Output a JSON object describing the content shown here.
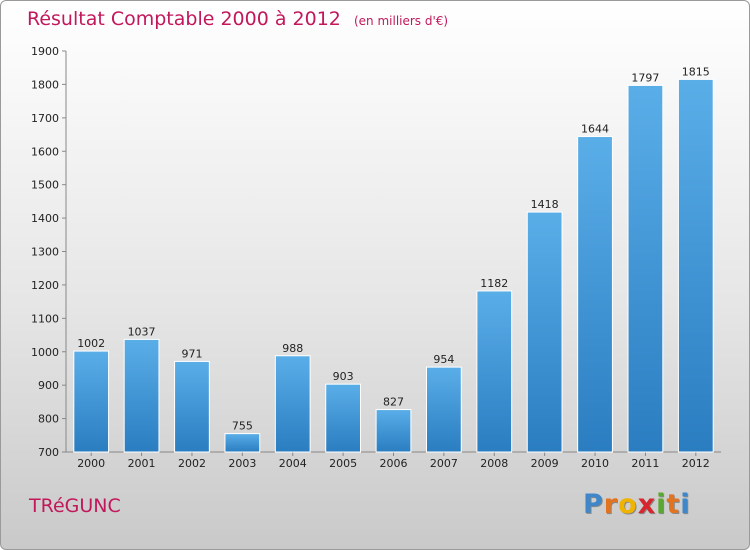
{
  "title": "Résultat Comptable 2000 à 2012",
  "unit": "(en milliers d'€)",
  "commune": "TRéGUNC",
  "logo": {
    "letters": [
      "P",
      "r",
      "o",
      "x",
      "i",
      "t",
      "i"
    ],
    "colors": [
      "#3f87c8",
      "#e2731f",
      "#f0b400",
      "#d7262d",
      "#5aa831",
      "#e2731f",
      "#3f87c8"
    ]
  },
  "colors": {
    "title": "#c2185b",
    "bar_top": "#5aaee8",
    "bar_bottom": "#2a7dc0"
  },
  "chart_data": {
    "type": "bar",
    "categories": [
      "2000",
      "2001",
      "2002",
      "2003",
      "2004",
      "2005",
      "2006",
      "2007",
      "2008",
      "2009",
      "2010",
      "2011",
      "2012"
    ],
    "values": [
      1002,
      1037,
      971,
      755,
      988,
      903,
      827,
      954,
      1182,
      1418,
      1644,
      1797,
      1815
    ],
    "title": "Résultat Comptable 2000 à 2012",
    "xlabel": "",
    "ylabel": "",
    "ylim": [
      700,
      1900
    ],
    "yticks": [
      700,
      800,
      900,
      1000,
      1100,
      1200,
      1300,
      1400,
      1500,
      1600,
      1700,
      1800,
      1900
    ],
    "grid": false,
    "legend": "none"
  }
}
